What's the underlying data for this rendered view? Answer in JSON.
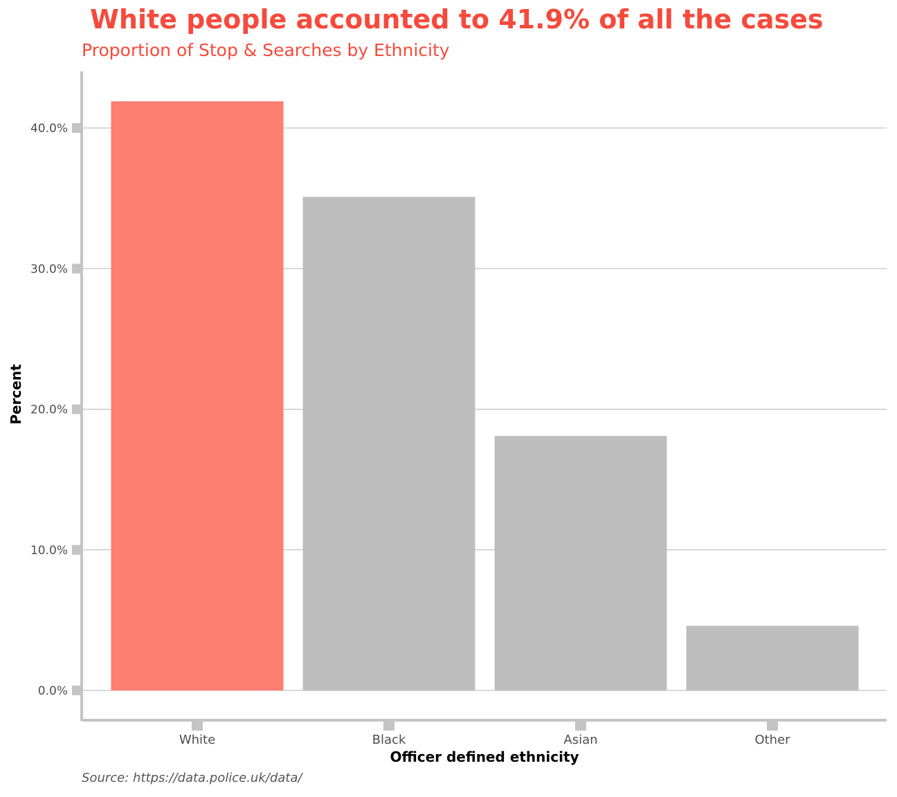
{
  "title": "White people accounted to 41.9% of all the cases",
  "subtitle": "Proportion of Stop & Searches by Ethnicity",
  "caption": "Source:  https://data.police.uk/data/",
  "colors": {
    "highlight": "#fd7f72",
    "bar": "#bebebe",
    "axis": "#c4c4c4",
    "grid": "#b5b5b5",
    "title": "#f54a3c"
  },
  "chart_data": {
    "type": "bar",
    "categories": [
      "White",
      "Black",
      "Asian",
      "Other"
    ],
    "values": [
      41.9,
      35.1,
      18.1,
      4.6
    ],
    "highlight": "White",
    "xlabel": "Officer defined ethnicity",
    "ylabel": "Percent",
    "ylim": [
      0,
      44
    ],
    "yticks": [
      0,
      10,
      20,
      30,
      40
    ],
    "ytick_labels": [
      "0.0%",
      "10.0%",
      "20.0%",
      "30.0%",
      "40.0%"
    ],
    "grid": true,
    "legend": "none"
  }
}
